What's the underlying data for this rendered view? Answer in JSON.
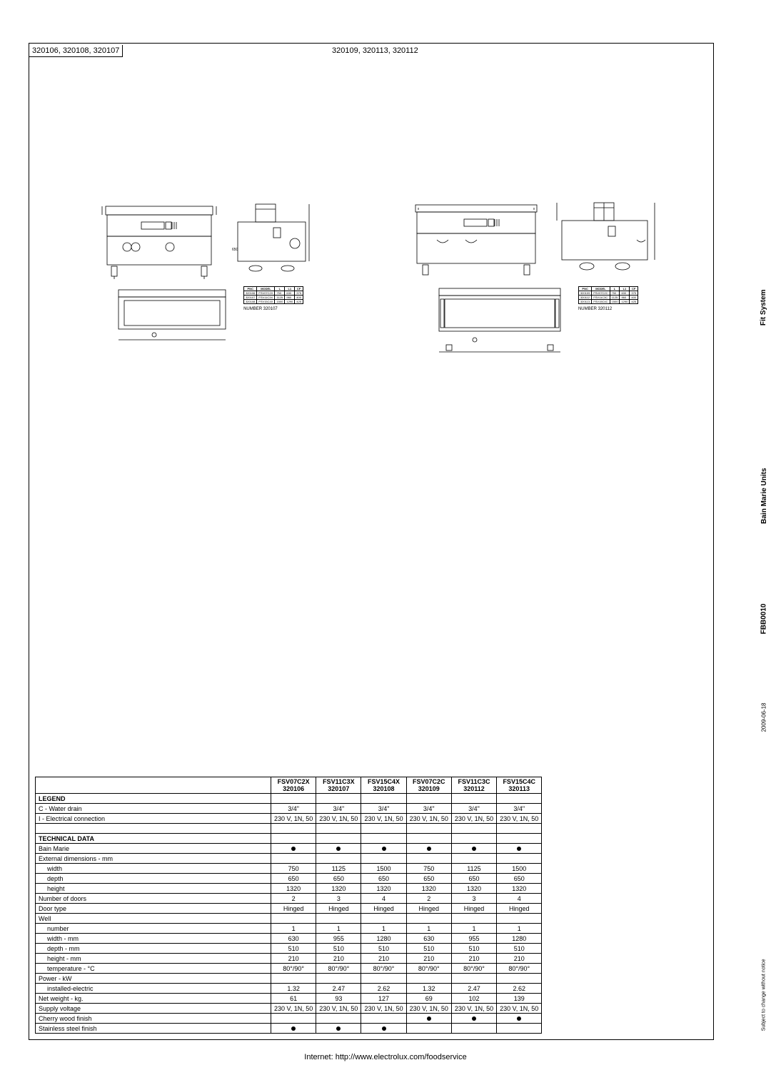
{
  "header": {
    "left": "320106, 320108, 320107",
    "right": "320109, 320113, 320112"
  },
  "side": {
    "l1": "Fit System",
    "l2": "Bain Marie Units",
    "l3": "FBB0010",
    "l4": "2009-06-18",
    "l5": "Subject to change without notice"
  },
  "footer": "Internet: http://www.electrolux.com/foodservice",
  "dim_tables": {
    "left": {
      "headers": [
        "PNC",
        "MODEL",
        "L",
        "L1",
        "CF"
      ],
      "rows": [
        [
          "320106",
          "FSV07C2X",
          "750",
          "630",
          "375"
        ],
        [
          "320107",
          "FSV11C3X",
          "1125",
          "960",
          "400"
        ],
        [
          "320108",
          "FSV15C4X",
          "1500",
          "1290",
          "425"
        ]
      ],
      "number": "NUMBER 320107"
    },
    "right": {
      "headers": [
        "PNC",
        "MODEL",
        "L",
        "L1",
        "CF"
      ],
      "rows": [
        [
          "320109",
          "FSV07C2C",
          "750",
          "630",
          "375"
        ],
        [
          "320112",
          "FSV11C3C",
          "1125",
          "960",
          "400"
        ],
        [
          "320113",
          "FSV15C4C",
          "1500",
          "1290",
          "425"
        ]
      ],
      "number": "NUMBER 320112"
    }
  },
  "spec": {
    "columns": [
      {
        "model": "FSV07C2X",
        "pnc": "320106"
      },
      {
        "model": "FSV11C3X",
        "pnc": "320107"
      },
      {
        "model": "FSV15C4X",
        "pnc": "320108"
      },
      {
        "model": "FSV07C2C",
        "pnc": "320109"
      },
      {
        "model": "FSV11C3C",
        "pnc": "320112"
      },
      {
        "model": "FSV15C4C",
        "pnc": "320113"
      }
    ],
    "legend_label": "LEGEND",
    "rows": [
      {
        "label": "C  - Water drain",
        "v": [
          "3/4\"",
          "3/4\"",
          "3/4\"",
          "3/4\"",
          "3/4\"",
          "3/4\""
        ]
      },
      {
        "label": "I  - Electrical connection",
        "v": [
          "230 V, 1N, 50",
          "230 V, 1N, 50",
          "230 V, 1N, 50",
          "230 V, 1N, 50",
          "230 V, 1N, 50",
          "230 V, 1N, 50"
        ]
      }
    ],
    "tech_label": "TECHNICAL DATA",
    "tech_rows": [
      {
        "label": "Bain Marie",
        "v": [
          "●",
          "●",
          "●",
          "●",
          "●",
          "●"
        ],
        "dot": true
      },
      {
        "label": "External dimensions - mm",
        "v": [
          "",
          "",
          "",
          "",
          "",
          ""
        ]
      },
      {
        "label": "width",
        "indent": true,
        "v": [
          "750",
          "1125",
          "1500",
          "750",
          "1125",
          "1500"
        ]
      },
      {
        "label": "depth",
        "indent": true,
        "v": [
          "650",
          "650",
          "650",
          "650",
          "650",
          "650"
        ]
      },
      {
        "label": "height",
        "indent": true,
        "v": [
          "1320",
          "1320",
          "1320",
          "1320",
          "1320",
          "1320"
        ]
      },
      {
        "label": "Number of doors",
        "v": [
          "2",
          "3",
          "4",
          "2",
          "3",
          "4"
        ]
      },
      {
        "label": "Door type",
        "v": [
          "Hinged",
          "Hinged",
          "Hinged",
          "Hinged",
          "Hinged",
          "Hinged"
        ]
      },
      {
        "label": "Well",
        "v": [
          "",
          "",
          "",
          "",
          "",
          ""
        ]
      },
      {
        "label": "number",
        "indent": true,
        "v": [
          "1",
          "1",
          "1",
          "1",
          "1",
          "1"
        ]
      },
      {
        "label": "width - mm",
        "indent": true,
        "v": [
          "630",
          "955",
          "1280",
          "630",
          "955",
          "1280"
        ]
      },
      {
        "label": "depth - mm",
        "indent": true,
        "v": [
          "510",
          "510",
          "510",
          "510",
          "510",
          "510"
        ]
      },
      {
        "label": "height - mm",
        "indent": true,
        "v": [
          "210",
          "210",
          "210",
          "210",
          "210",
          "210"
        ]
      },
      {
        "label": "temperature - °C",
        "indent": true,
        "v": [
          "80°/90°",
          "80°/90°",
          "80°/90°",
          "80°/90°",
          "80°/90°",
          "80°/90°"
        ]
      },
      {
        "label": "Power - kW",
        "v": [
          "",
          "",
          "",
          "",
          "",
          ""
        ]
      },
      {
        "label": "installed-electric",
        "indent": true,
        "v": [
          "1.32",
          "2.47",
          "2.62",
          "1.32",
          "2.47",
          "2.62"
        ]
      },
      {
        "label": "Net weight - kg.",
        "v": [
          "61",
          "93",
          "127",
          "69",
          "102",
          "139"
        ]
      },
      {
        "label": "Supply voltage",
        "v": [
          "230 V, 1N, 50",
          "230 V, 1N, 50",
          "230 V, 1N, 50",
          "230 V, 1N, 50",
          "230 V, 1N, 50",
          "230 V, 1N, 50"
        ]
      },
      {
        "label": "Cherry wood finish",
        "v": [
          "",
          "",
          "",
          "●",
          "●",
          "●"
        ],
        "dot": true
      },
      {
        "label": "Stainless steel finish",
        "v": [
          "●",
          "●",
          "●",
          "",
          "",
          ""
        ],
        "dot": true
      }
    ]
  },
  "colors": {
    "line": "#000000",
    "bg": "#ffffff"
  }
}
